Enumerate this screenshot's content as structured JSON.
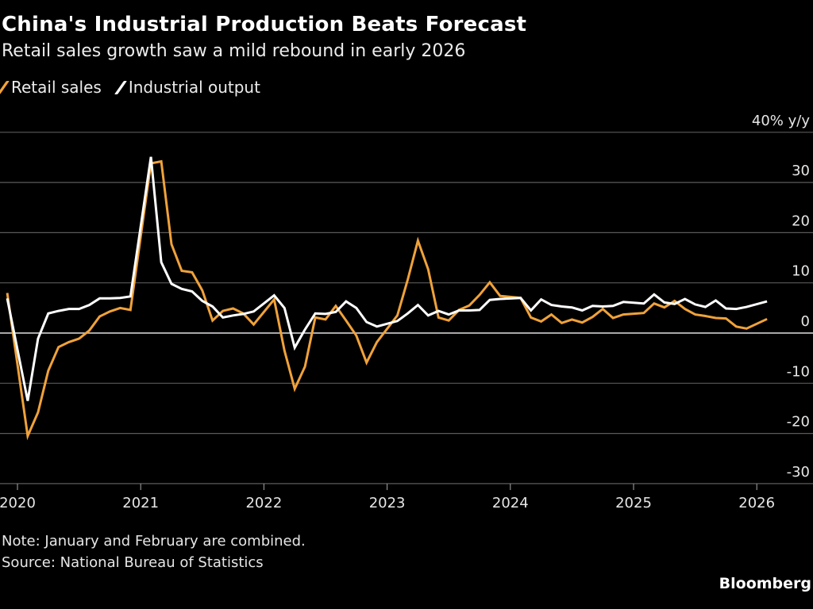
{
  "title": "China's Industrial Production Beats Forecast",
  "subtitle": "Retail sales growth saw a mild rebound in early 2026",
  "note": "Note: January and February are combined.",
  "source": "Source: National Bureau of Statistics",
  "brand": "Bloomberg",
  "chart_data": {
    "type": "line",
    "title": "China's Industrial Production Beats Forecast",
    "ylabel": "40% y/y",
    "ylim": [
      -30,
      40
    ],
    "y_ticks": [
      "40% y/y",
      "30",
      "20",
      "10",
      "0",
      "-10",
      "-20",
      "-30"
    ],
    "y_tick_values": [
      40,
      30,
      20,
      10,
      0,
      -10,
      -20,
      -30
    ],
    "x_ticks": [
      "2020",
      "2021",
      "2022",
      "2023",
      "2024",
      "2025",
      "2026"
    ],
    "grid": true,
    "legend": "top-left",
    "x": [
      "2019-12",
      "2020-02",
      "2020-03",
      "2020-04",
      "2020-05",
      "2020-06",
      "2020-07",
      "2020-08",
      "2020-09",
      "2020-10",
      "2020-11",
      "2020-12",
      "2021-02",
      "2021-03",
      "2021-04",
      "2021-05",
      "2021-06",
      "2021-07",
      "2021-08",
      "2021-09",
      "2021-10",
      "2021-11",
      "2021-12",
      "2022-02",
      "2022-03",
      "2022-04",
      "2022-05",
      "2022-06",
      "2022-07",
      "2022-08",
      "2022-09",
      "2022-10",
      "2022-11",
      "2022-12",
      "2023-02",
      "2023-03",
      "2023-04",
      "2023-05",
      "2023-06",
      "2023-07",
      "2023-08",
      "2023-09",
      "2023-10",
      "2023-11",
      "2023-12",
      "2024-02",
      "2024-03",
      "2024-04",
      "2024-05",
      "2024-06",
      "2024-07",
      "2024-08",
      "2024-09",
      "2024-10",
      "2024-11",
      "2024-12",
      "2025-02",
      "2025-03",
      "2025-04",
      "2025-05",
      "2025-06",
      "2025-07",
      "2025-08",
      "2025-09",
      "2025-10",
      "2025-11",
      "2025-12",
      "2026-02"
    ],
    "series": [
      {
        "name": "Retail sales",
        "color": "#f0a23a",
        "values": [
          8.0,
          -20.5,
          -15.8,
          -7.5,
          -2.8,
          -1.8,
          -1.1,
          0.5,
          3.3,
          4.3,
          5.0,
          4.6,
          33.8,
          34.2,
          17.7,
          12.4,
          12.1,
          8.5,
          2.5,
          4.4,
          4.9,
          3.9,
          1.7,
          6.7,
          -3.5,
          -11.1,
          -6.7,
          3.1,
          2.7,
          5.4,
          2.5,
          -0.5,
          -5.9,
          -1.8,
          3.5,
          10.6,
          18.4,
          12.7,
          3.1,
          2.5,
          4.6,
          5.5,
          7.6,
          10.1,
          7.4,
          7.0,
          3.1,
          2.3,
          3.7,
          2.0,
          2.7,
          2.1,
          3.2,
          4.8,
          3.0,
          3.7,
          4.0,
          5.9,
          5.1,
          6.4,
          4.8,
          3.7,
          3.4,
          3.0,
          2.9,
          1.3,
          0.9,
          2.8
        ]
      },
      {
        "name": "Industrial output",
        "color": "#ffffff",
        "values": [
          6.9,
          -13.5,
          -1.1,
          3.9,
          4.4,
          4.8,
          4.8,
          5.6,
          6.9,
          6.9,
          7.0,
          7.3,
          35.1,
          14.1,
          9.8,
          8.8,
          8.3,
          6.4,
          5.3,
          3.1,
          3.5,
          3.8,
          4.3,
          7.5,
          5.0,
          -2.9,
          0.7,
          3.9,
          3.8,
          4.2,
          6.3,
          5.0,
          2.2,
          1.3,
          2.4,
          3.9,
          5.6,
          3.5,
          4.4,
          3.7,
          4.5,
          4.5,
          4.6,
          6.6,
          6.8,
          7.0,
          4.5,
          6.7,
          5.6,
          5.3,
          5.1,
          4.5,
          5.4,
          5.3,
          5.4,
          6.2,
          5.9,
          7.7,
          6.1,
          5.8,
          6.8,
          5.7,
          5.2,
          6.5,
          4.9,
          4.8,
          5.2,
          6.3
        ]
      }
    ]
  }
}
